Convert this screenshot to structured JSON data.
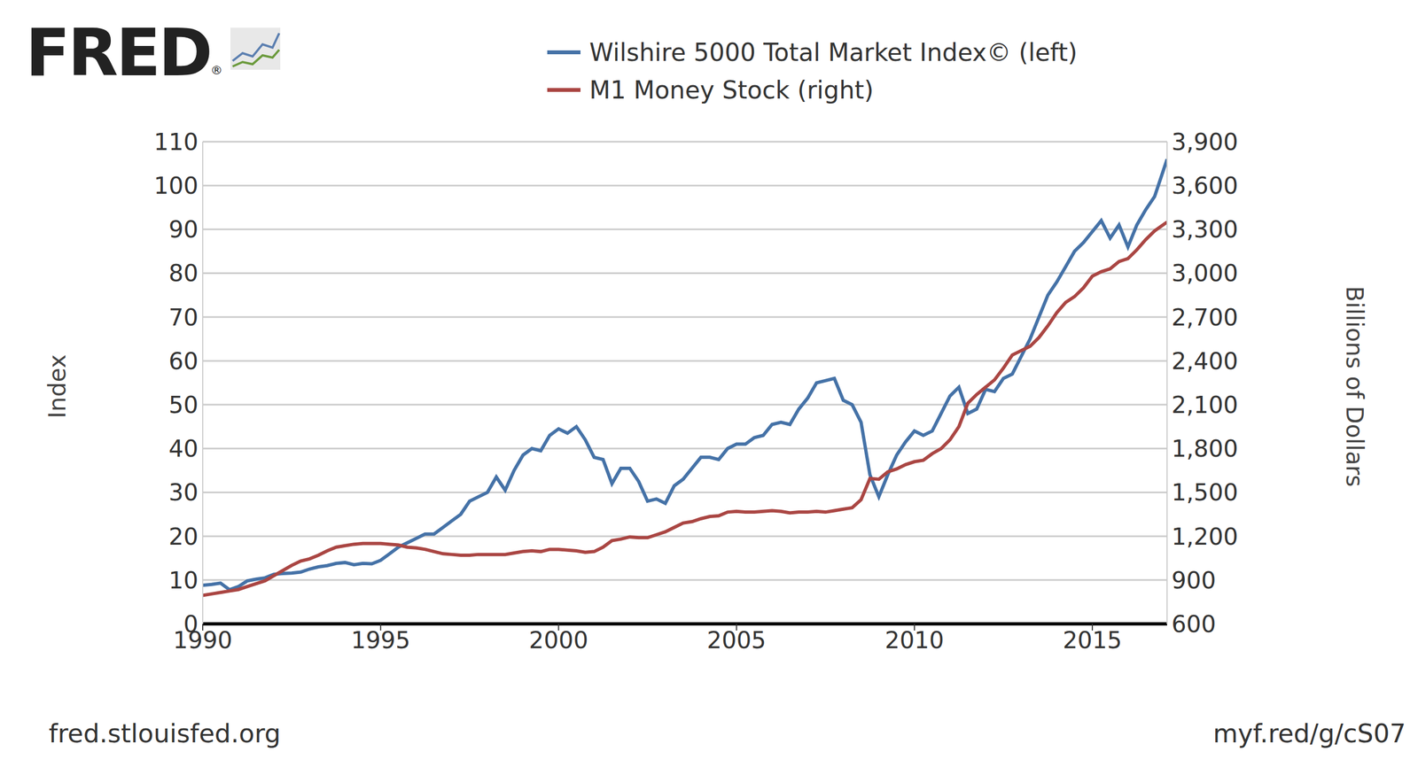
{
  "chart_data": {
    "type": "line",
    "logo": "FRED",
    "logo_mark": "®",
    "y_label": "Index",
    "y2_label": "Billions of Dollars",
    "source": "fred.stlouisfed.org",
    "link": "myf.red/g/cS07",
    "grid": true,
    "legend": "top",
    "x": [
      1990,
      1990.25,
      1990.5,
      1990.75,
      1991,
      1991.25,
      1991.5,
      1991.75,
      1992,
      1992.25,
      1992.5,
      1992.75,
      1993,
      1993.25,
      1993.5,
      1993.75,
      1994,
      1994.25,
      1994.5,
      1994.75,
      1995,
      1995.25,
      1995.5,
      1995.75,
      1996,
      1996.25,
      1996.5,
      1996.75,
      1997,
      1997.25,
      1997.5,
      1997.75,
      1998,
      1998.25,
      1998.5,
      1998.75,
      1999,
      1999.25,
      1999.5,
      1999.75,
      2000,
      2000.25,
      2000.5,
      2000.75,
      2001,
      2001.25,
      2001.5,
      2001.75,
      2002,
      2002.25,
      2002.5,
      2002.75,
      2003,
      2003.25,
      2003.5,
      2003.75,
      2004,
      2004.25,
      2004.5,
      2004.75,
      2005,
      2005.25,
      2005.5,
      2005.75,
      2006,
      2006.25,
      2006.5,
      2006.75,
      2007,
      2007.25,
      2007.5,
      2007.75,
      2008,
      2008.25,
      2008.5,
      2008.75,
      2009,
      2009.25,
      2009.5,
      2009.75,
      2010,
      2010.25,
      2010.5,
      2010.75,
      2011,
      2011.25,
      2011.5,
      2011.75,
      2012,
      2012.25,
      2012.5,
      2012.75,
      2013,
      2013.25,
      2013.5,
      2013.75,
      2014,
      2014.25,
      2014.5,
      2014.75,
      2015,
      2015.25,
      2015.5,
      2015.75,
      2016,
      2016.25,
      2016.5,
      2016.75,
      2017.1
    ],
    "series": [
      {
        "name": "Wilshire 5000 Total Market Index© (left)",
        "color": "#4572a7",
        "axis": "y",
        "values": [
          8.8,
          9.0,
          9.3,
          7.8,
          8.5,
          9.8,
          10.2,
          10.5,
          11.3,
          11.5,
          11.6,
          11.8,
          12.5,
          13.0,
          13.3,
          13.8,
          14.0,
          13.5,
          13.8,
          13.7,
          14.5,
          16.0,
          17.5,
          18.5,
          19.5,
          20.5,
          20.5,
          22.0,
          23.5,
          25.0,
          28.0,
          29.0,
          30.0,
          33.5,
          30.5,
          35.0,
          38.5,
          40.0,
          39.5,
          43.0,
          44.5,
          43.5,
          45.0,
          42.0,
          38.0,
          37.5,
          32.0,
          35.5,
          35.5,
          32.5,
          28.0,
          28.5,
          27.5,
          31.5,
          33.0,
          35.5,
          38.0,
          38.0,
          37.5,
          40.0,
          41.0,
          41.0,
          42.5,
          43.0,
          45.5,
          46.0,
          45.5,
          49.0,
          51.5,
          55.0,
          55.5,
          56.0,
          51.0,
          50.0,
          46.0,
          34.0,
          29.0,
          34.0,
          38.5,
          41.5,
          44.0,
          43.0,
          44.0,
          48.0,
          52.0,
          54.0,
          48.0,
          49.0,
          53.5,
          53.0,
          56.0,
          57.0,
          61.0,
          65.0,
          70.0,
          75.0,
          78.0,
          81.5,
          85.0,
          87.0,
          89.5,
          92.0,
          88.0,
          91.0,
          86.0,
          91.0,
          94.5,
          97.5,
          106.0
        ]
      },
      {
        "name": "M1 Money Stock (right)",
        "color": "#aa4643",
        "axis": "y2",
        "values": [
          795,
          805,
          815,
          825,
          835,
          855,
          875,
          895,
          930,
          965,
          1000,
          1030,
          1045,
          1070,
          1100,
          1125,
          1135,
          1145,
          1150,
          1150,
          1150,
          1145,
          1140,
          1125,
          1120,
          1110,
          1095,
          1080,
          1075,
          1070,
          1070,
          1075,
          1075,
          1075,
          1075,
          1085,
          1095,
          1100,
          1095,
          1110,
          1110,
          1105,
          1100,
          1090,
          1095,
          1125,
          1170,
          1180,
          1195,
          1190,
          1190,
          1210,
          1230,
          1260,
          1290,
          1300,
          1320,
          1335,
          1340,
          1365,
          1370,
          1365,
          1365,
          1370,
          1375,
          1370,
          1360,
          1365,
          1365,
          1370,
          1365,
          1375,
          1385,
          1395,
          1450,
          1595,
          1590,
          1640,
          1660,
          1690,
          1710,
          1720,
          1765,
          1800,
          1860,
          1950,
          2110,
          2170,
          2220,
          2270,
          2350,
          2440,
          2470,
          2500,
          2560,
          2640,
          2730,
          2800,
          2840,
          2900,
          2980,
          3010,
          3030,
          3080,
          3100,
          3160,
          3230,
          3290,
          3350
        ]
      }
    ],
    "xlim": [
      1990,
      2017.1
    ],
    "xticks": [
      1990,
      1995,
      2000,
      2005,
      2010,
      2015
    ],
    "ylim": [
      0,
      110
    ],
    "yticks": [
      0,
      10,
      20,
      30,
      40,
      50,
      60,
      70,
      80,
      90,
      100,
      110
    ],
    "y2lim": [
      600,
      3900
    ],
    "y2ticks": [
      600,
      900,
      {
        "value": 1200,
        "label": "1,200"
      },
      {
        "value": 1500,
        "label": "1,500"
      },
      {
        "value": 1800,
        "label": "1,800"
      },
      {
        "value": 2100,
        "label": "2,100"
      },
      {
        "value": 2400,
        "label": "2,400"
      },
      {
        "value": 2700,
        "label": "2,700"
      },
      {
        "value": 3000,
        "label": "3,000"
      },
      {
        "value": 3300,
        "label": "3,300"
      },
      {
        "value": 3600,
        "label": "3,600"
      },
      {
        "value": 3900,
        "label": "3,900"
      }
    ]
  }
}
